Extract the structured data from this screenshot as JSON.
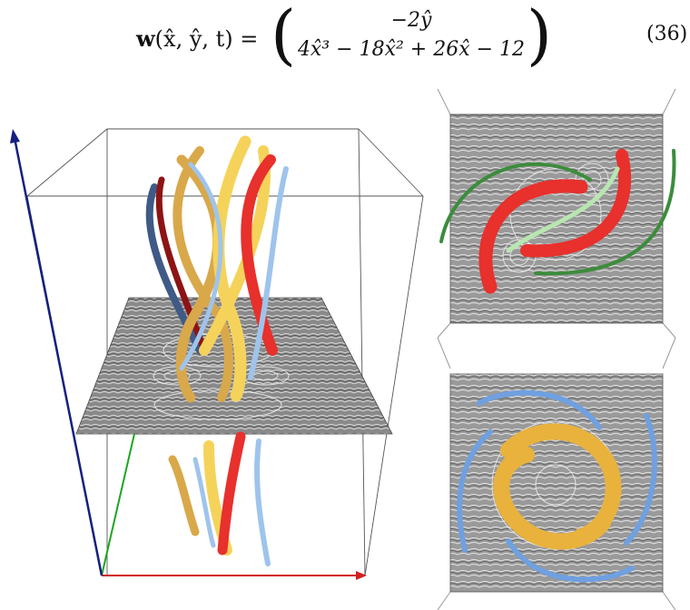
{
  "equation": {
    "lhs": "w",
    "args": "(x̂, ŷ, t) =",
    "row1": "−2ŷ",
    "row2": "4x̂³ − 18x̂² + 26x̂ − 12",
    "number": "(36)"
  },
  "figure": {
    "axis_colors": {
      "x": "#d11f1f",
      "y": "#1fa51f",
      "z": "#15207f"
    },
    "tube_colors": [
      "#e8302c",
      "#f5d35a",
      "#d9a84a",
      "#9fc4ec",
      "#8d1414",
      "#3f5a86"
    ],
    "panel_tr_tubes": [
      "#e8302c",
      "#3c8c3c",
      "#b8e6b0"
    ],
    "panel_br_tubes": [
      "#e8b23c",
      "#6fa0e0"
    ]
  }
}
